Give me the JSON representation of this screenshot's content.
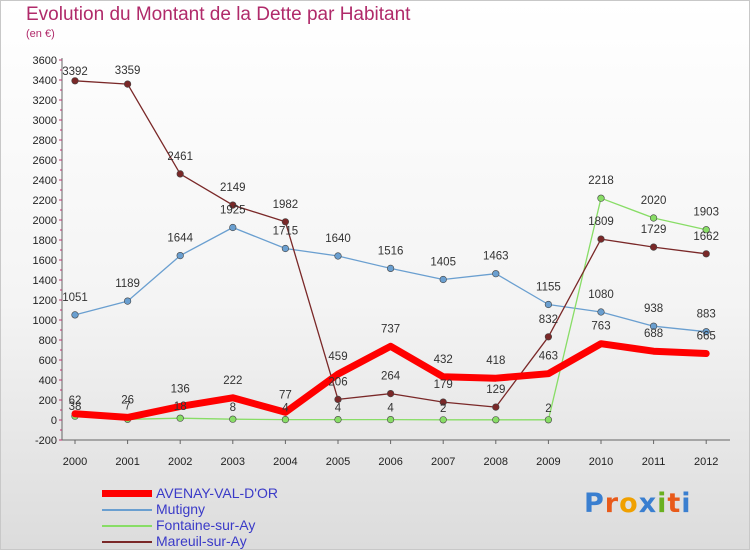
{
  "title": "Evolution du Montant de la Dette par Habitant",
  "subtitle": "(en €)",
  "logo": "Proxiti",
  "chart_data": {
    "type": "line",
    "title": "Evolution du Montant de la Dette par Habitant",
    "subtitle": "(en €)",
    "xlabel": "",
    "ylabel": "",
    "x": [
      "2000",
      "2001",
      "2002",
      "2003",
      "2004",
      "2005",
      "2006",
      "2007",
      "2008",
      "2009",
      "2010",
      "2011",
      "2012"
    ],
    "ylim": [
      -200,
      3600
    ],
    "yticks": [
      -200,
      0,
      200,
      400,
      600,
      800,
      1000,
      1200,
      1400,
      1600,
      1800,
      2000,
      2200,
      2400,
      2600,
      2800,
      3000,
      3200,
      3400,
      3600
    ],
    "grid": false,
    "legend_position": "bottom-left",
    "series": [
      {
        "name": "AVENAY-VAL-D'OR",
        "color": "#ff0000",
        "values": [
          62,
          26,
          136,
          222,
          77,
          459,
          737,
          432,
          418,
          463,
          763,
          688,
          665
        ],
        "labels": [
          "62",
          "26",
          "136",
          "222",
          "77",
          "459",
          "737",
          "432",
          "418",
          "463",
          "763",
          "688",
          "665"
        ]
      },
      {
        "name": "Mutigny",
        "color": "#6a9fd0",
        "values": [
          1051,
          1189,
          1644,
          1925,
          1715,
          1640,
          1516,
          1405,
          1463,
          1155,
          1080,
          938,
          883
        ],
        "labels": [
          "1051",
          "1189",
          "1644",
          "1925",
          "1715",
          "1640",
          "1516",
          "1405",
          "1463",
          "1155",
          "1080",
          "938",
          "883"
        ]
      },
      {
        "name": "Fontaine-sur-Ay",
        "color": "#88dd66",
        "values": [
          38,
          7,
          18,
          8,
          4,
          4,
          4,
          2,
          2,
          2,
          2218,
          2020,
          1903
        ],
        "labels": [
          "38",
          "7",
          "18",
          "8",
          "4",
          "4",
          "4",
          "2",
          "",
          "2",
          "2218",
          "2020",
          "1903"
        ]
      },
      {
        "name": "Mareuil-sur-Ay",
        "color": "#7a2828",
        "values": [
          3392,
          3359,
          2461,
          2149,
          1982,
          206,
          264,
          179,
          129,
          832,
          1809,
          1729,
          1662
        ],
        "labels": [
          "3392",
          "3359",
          "2461",
          "2149",
          "1982",
          "206",
          "264",
          "179",
          "129",
          "832",
          "1809",
          "1729",
          "1662"
        ]
      }
    ]
  }
}
